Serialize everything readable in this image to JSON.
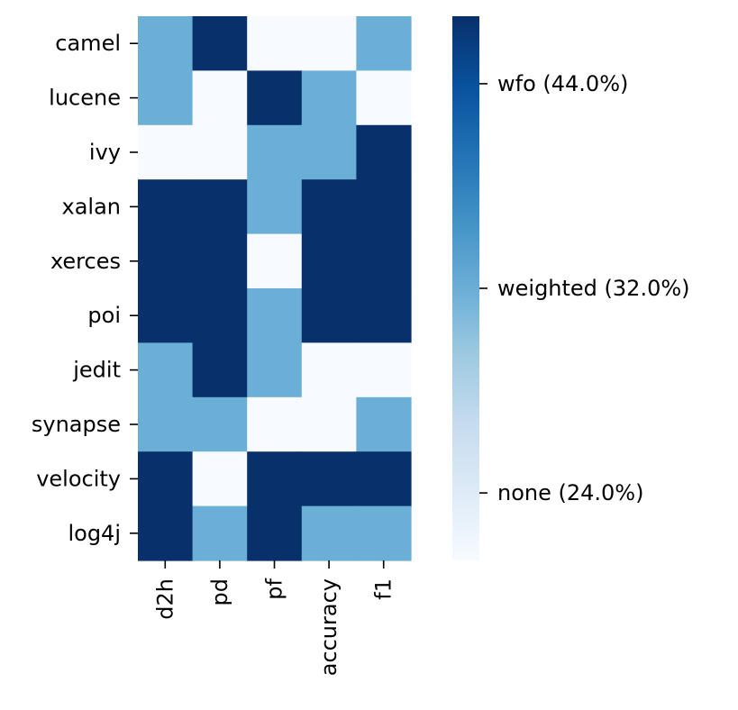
{
  "chart_data": {
    "type": "heatmap",
    "title": "",
    "xlabel": "",
    "ylabel": "",
    "x_categories": [
      "d2h",
      "pd",
      "pf",
      "accuracy",
      "f1"
    ],
    "y_categories": [
      "camel",
      "lucene",
      "ivy",
      "xalan",
      "xerces",
      "poi",
      "jedit",
      "synapse",
      "velocity",
      "log4j"
    ],
    "levels": [
      {
        "value": 0,
        "label": "none (24.0%)",
        "color": "#f7fbff"
      },
      {
        "value": 1,
        "label": "weighted (32.0%)",
        "color": "#6baed6"
      },
      {
        "value": 2,
        "label": "wfo (44.0%)",
        "color": "#08306b"
      }
    ],
    "values": [
      [
        1,
        2,
        0,
        0,
        1
      ],
      [
        1,
        0,
        2,
        1,
        0
      ],
      [
        0,
        0,
        1,
        1,
        2
      ],
      [
        2,
        2,
        1,
        2,
        2
      ],
      [
        2,
        2,
        0,
        2,
        2
      ],
      [
        2,
        2,
        1,
        2,
        2
      ],
      [
        1,
        2,
        1,
        0,
        0
      ],
      [
        1,
        1,
        0,
        0,
        1
      ],
      [
        2,
        0,
        2,
        2,
        2
      ],
      [
        2,
        1,
        2,
        1,
        1
      ]
    ],
    "colorbar": {
      "colormap": "Blues",
      "range": [
        -0.33,
        2.33
      ],
      "ticks": [
        0,
        1,
        2
      ],
      "colors": [
        "#f7fbff",
        "#deebf7",
        "#c6dbef",
        "#9ecae1",
        "#6baed6",
        "#4292c6",
        "#2171b5",
        "#08519c",
        "#08306b"
      ]
    }
  }
}
